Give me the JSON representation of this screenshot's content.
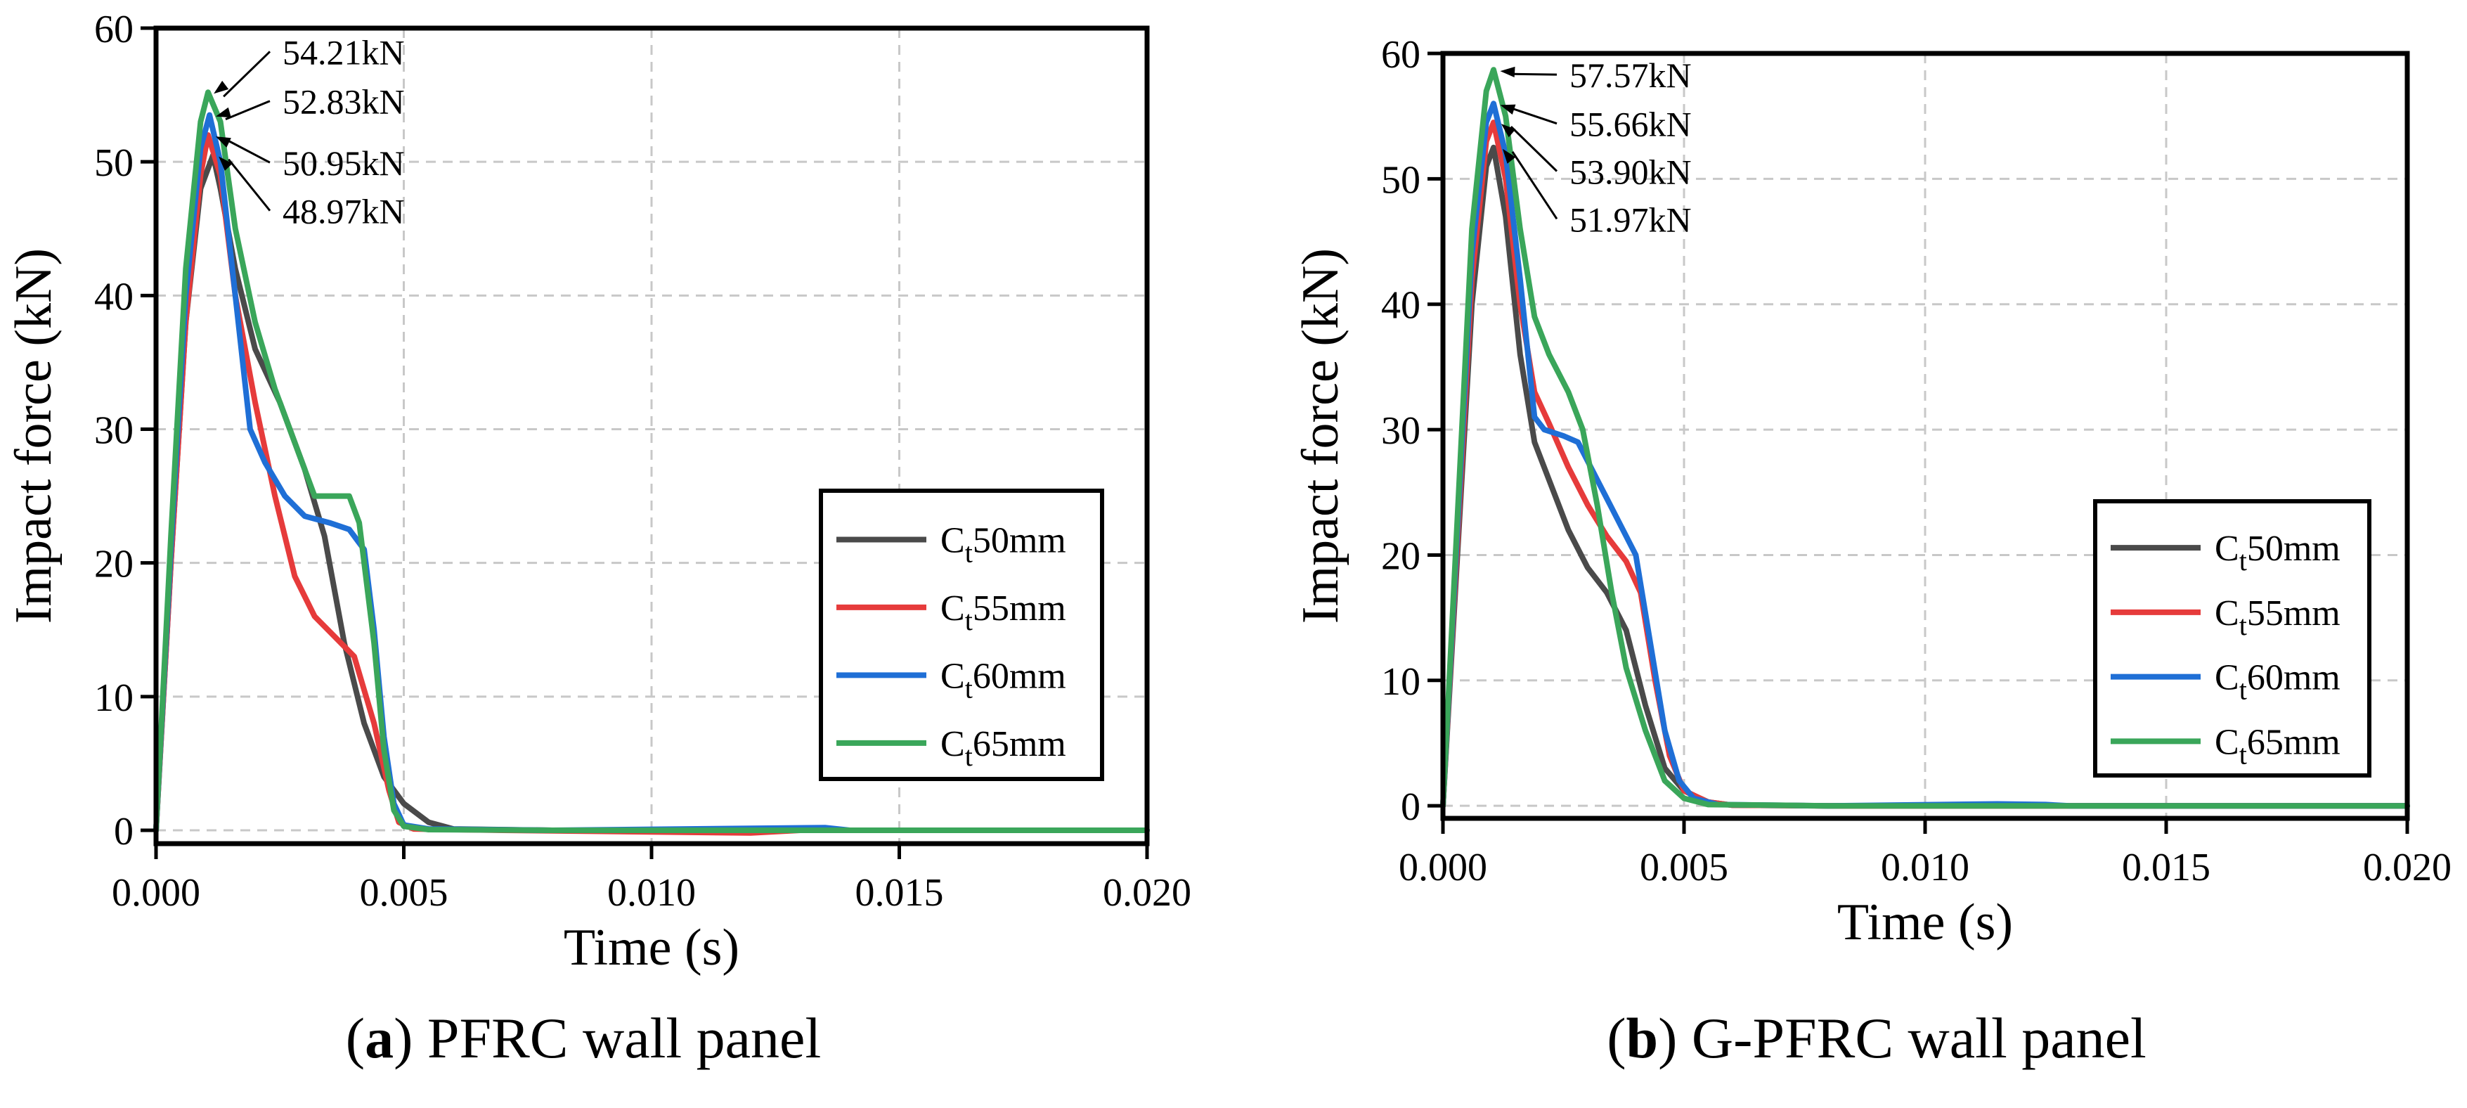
{
  "chart_data": [
    {
      "type": "line",
      "caption_letter": "a",
      "caption_text": "PFRC wall panel",
      "xlabel": "Time (s)",
      "ylabel": "Impact force (kN)",
      "xlim": [
        0,
        0.02
      ],
      "ylim": [
        -1,
        60
      ],
      "xticks": [
        "0.000",
        "0.005",
        "0.010",
        "0.015",
        "0.020"
      ],
      "yticks": [
        "0",
        "10",
        "20",
        "30",
        "40",
        "50",
        "60"
      ],
      "grid": true,
      "legend_position": "lower-right",
      "series": [
        {
          "name_main": "C",
          "name_sub": "t",
          "name_rest": "50mm",
          "color": "#4a4a4a",
          "points": [
            [
              0,
              0
            ],
            [
              0.0003,
              20
            ],
            [
              0.0006,
              38
            ],
            [
              0.0009,
              48
            ],
            [
              0.00115,
              50.5
            ],
            [
              0.0013,
              48
            ],
            [
              0.0016,
              42
            ],
            [
              0.002,
              36
            ],
            [
              0.0025,
              32
            ],
            [
              0.003,
              27
            ],
            [
              0.0034,
              22
            ],
            [
              0.0038,
              14
            ],
            [
              0.0042,
              8
            ],
            [
              0.0046,
              4
            ],
            [
              0.005,
              2
            ],
            [
              0.0055,
              0.6
            ],
            [
              0.006,
              0.1
            ],
            [
              0.008,
              0
            ],
            [
              0.02,
              0
            ]
          ]
        },
        {
          "name_main": "C",
          "name_sub": "t",
          "name_rest": "55mm",
          "color": "#e63b3b",
          "points": [
            [
              0,
              0
            ],
            [
              0.0003,
              20
            ],
            [
              0.0006,
              38
            ],
            [
              0.0009,
              49
            ],
            [
              0.00105,
              52
            ],
            [
              0.0013,
              49
            ],
            [
              0.0016,
              40
            ],
            [
              0.002,
              32
            ],
            [
              0.0024,
              25
            ],
            [
              0.0028,
              19
            ],
            [
              0.0032,
              16
            ],
            [
              0.0036,
              14.5
            ],
            [
              0.004,
              13
            ],
            [
              0.0044,
              8
            ],
            [
              0.0047,
              3
            ],
            [
              0.0049,
              0.6
            ],
            [
              0.0052,
              0.1
            ],
            [
              0.007,
              0
            ],
            [
              0.012,
              -0.2
            ],
            [
              0.013,
              0
            ],
            [
              0.02,
              0
            ]
          ]
        },
        {
          "name_main": "C",
          "name_sub": "t",
          "name_rest": "60mm",
          "color": "#1f6fd6",
          "points": [
            [
              0,
              0
            ],
            [
              0.0003,
              21
            ],
            [
              0.0006,
              40
            ],
            [
              0.0009,
              51
            ],
            [
              0.00108,
              53.5
            ],
            [
              0.0013,
              50
            ],
            [
              0.0016,
              40
            ],
            [
              0.0019,
              30
            ],
            [
              0.0022,
              27.5
            ],
            [
              0.0026,
              25
            ],
            [
              0.003,
              23.5
            ],
            [
              0.0035,
              23
            ],
            [
              0.0039,
              22.5
            ],
            [
              0.0042,
              21
            ],
            [
              0.0044,
              15
            ],
            [
              0.0046,
              7
            ],
            [
              0.0048,
              2
            ],
            [
              0.005,
              0.4
            ],
            [
              0.0055,
              0.1
            ],
            [
              0.008,
              0
            ],
            [
              0.0135,
              0.2
            ],
            [
              0.014,
              0
            ],
            [
              0.02,
              0
            ]
          ]
        },
        {
          "name_main": "C",
          "name_sub": "t",
          "name_rest": "65mm",
          "color": "#3aa65a",
          "points": [
            [
              0,
              0
            ],
            [
              0.0003,
              22
            ],
            [
              0.0006,
              42
            ],
            [
              0.0009,
              53
            ],
            [
              0.00105,
              55.2
            ],
            [
              0.0013,
              53
            ],
            [
              0.0016,
              45
            ],
            [
              0.002,
              38
            ],
            [
              0.0024,
              33
            ],
            [
              0.0028,
              29
            ],
            [
              0.0032,
              25
            ],
            [
              0.0036,
              25
            ],
            [
              0.0039,
              25
            ],
            [
              0.0041,
              23
            ],
            [
              0.0044,
              14
            ],
            [
              0.0046,
              6
            ],
            [
              0.0048,
              1.5
            ],
            [
              0.005,
              0.3
            ],
            [
              0.0055,
              0.05
            ],
            [
              0.008,
              0
            ],
            [
              0.02,
              0
            ]
          ]
        }
      ],
      "annotations": [
        {
          "text": "54.21kN",
          "x": 0.00108,
          "y": 55.2,
          "label_y": 57.3
        },
        {
          "text": "52.83kN",
          "x": 0.00112,
          "y": 53.5,
          "label_y": 53.6
        },
        {
          "text": "50.95kN",
          "x": 0.00112,
          "y": 52.0,
          "label_y": 49.0
        },
        {
          "text": "48.97kN",
          "x": 0.00118,
          "y": 50.5,
          "label_y": 45.4
        }
      ]
    },
    {
      "type": "line",
      "caption_letter": "b",
      "caption_text": "G-PFRC wall panel",
      "xlabel": "Time (s)",
      "ylabel": "Impact force (kN)",
      "xlim": [
        0,
        0.02
      ],
      "ylim": [
        -1,
        60
      ],
      "xticks": [
        "0.000",
        "0.005",
        "0.010",
        "0.015",
        "0.020"
      ],
      "yticks": [
        "0",
        "10",
        "20",
        "30",
        "40",
        "50",
        "60"
      ],
      "grid": true,
      "legend_position": "lower-right",
      "series": [
        {
          "name_main": "C",
          "name_sub": "t",
          "name_rest": "50mm",
          "color": "#4a4a4a",
          "points": [
            [
              0,
              0
            ],
            [
              0.0003,
              20
            ],
            [
              0.0006,
              40
            ],
            [
              0.0009,
              51
            ],
            [
              0.00105,
              52.5
            ],
            [
              0.0013,
              47
            ],
            [
              0.0016,
              36
            ],
            [
              0.0019,
              29
            ],
            [
              0.0022,
              26
            ],
            [
              0.0026,
              22
            ],
            [
              0.003,
              19
            ],
            [
              0.0034,
              17
            ],
            [
              0.0038,
              14
            ],
            [
              0.0042,
              8
            ],
            [
              0.0046,
              3
            ],
            [
              0.005,
              1.2
            ],
            [
              0.0055,
              0.3
            ],
            [
              0.006,
              0.05
            ],
            [
              0.008,
              0
            ],
            [
              0.02,
              0
            ]
          ]
        },
        {
          "name_main": "C",
          "name_sub": "t",
          "name_rest": "55mm",
          "color": "#e63b3b",
          "points": [
            [
              0,
              0
            ],
            [
              0.0003,
              21
            ],
            [
              0.0006,
              42
            ],
            [
              0.0009,
              53
            ],
            [
              0.00105,
              54.5
            ],
            [
              0.0013,
              50
            ],
            [
              0.0016,
              40
            ],
            [
              0.0019,
              33
            ],
            [
              0.0022,
              30.5
            ],
            [
              0.0026,
              27
            ],
            [
              0.003,
              24
            ],
            [
              0.0034,
              21.5
            ],
            [
              0.0038,
              19.5
            ],
            [
              0.0041,
              17
            ],
            [
              0.0044,
              10
            ],
            [
              0.0047,
              4
            ],
            [
              0.005,
              1.2
            ],
            [
              0.0055,
              0.3
            ],
            [
              0.006,
              0.05
            ],
            [
              0.008,
              0
            ],
            [
              0.02,
              0
            ]
          ]
        },
        {
          "name_main": "C",
          "name_sub": "t",
          "name_rest": "60mm",
          "color": "#1f6fd6",
          "points": [
            [
              0,
              0
            ],
            [
              0.0003,
              22
            ],
            [
              0.0006,
              44
            ],
            [
              0.0009,
              54.5
            ],
            [
              0.00105,
              56
            ],
            [
              0.0013,
              52
            ],
            [
              0.0016,
              42
            ],
            [
              0.0019,
              31
            ],
            [
              0.0021,
              30
            ],
            [
              0.0025,
              29.5
            ],
            [
              0.0028,
              29
            ],
            [
              0.0032,
              26
            ],
            [
              0.0036,
              23
            ],
            [
              0.004,
              20
            ],
            [
              0.0043,
              13
            ],
            [
              0.0046,
              6
            ],
            [
              0.0049,
              2
            ],
            [
              0.0052,
              0.6
            ],
            [
              0.0057,
              0.1
            ],
            [
              0.008,
              0
            ],
            [
              0.0115,
              0.15
            ],
            [
              0.0125,
              0.1
            ],
            [
              0.013,
              0
            ],
            [
              0.02,
              0
            ]
          ]
        },
        {
          "name_main": "C",
          "name_sub": "t",
          "name_rest": "65mm",
          "color": "#3aa65a",
          "points": [
            [
              0,
              0
            ],
            [
              0.0003,
              23
            ],
            [
              0.0006,
              46
            ],
            [
              0.0009,
              57
            ],
            [
              0.00105,
              58.7
            ],
            [
              0.0013,
              55
            ],
            [
              0.0016,
              46
            ],
            [
              0.0019,
              39
            ],
            [
              0.0022,
              36
            ],
            [
              0.0026,
              33
            ],
            [
              0.0029,
              30
            ],
            [
              0.0032,
              24
            ],
            [
              0.0035,
              17
            ],
            [
              0.0038,
              11
            ],
            [
              0.0042,
              6
            ],
            [
              0.0046,
              2
            ],
            [
              0.005,
              0.6
            ],
            [
              0.0055,
              0.1
            ],
            [
              0.008,
              0
            ],
            [
              0.02,
              0
            ]
          ]
        }
      ],
      "annotations": [
        {
          "text": "57.57kN",
          "x": 0.0011,
          "y": 58.7,
          "label_y": 57.3
        },
        {
          "text": "55.66kN",
          "x": 0.0011,
          "y": 56.0,
          "label_y": 53.4
        },
        {
          "text": "53.90kN",
          "x": 0.00112,
          "y": 54.5,
          "label_y": 49.6
        },
        {
          "text": "51.97kN",
          "x": 0.00115,
          "y": 52.5,
          "label_y": 45.8
        }
      ]
    }
  ]
}
